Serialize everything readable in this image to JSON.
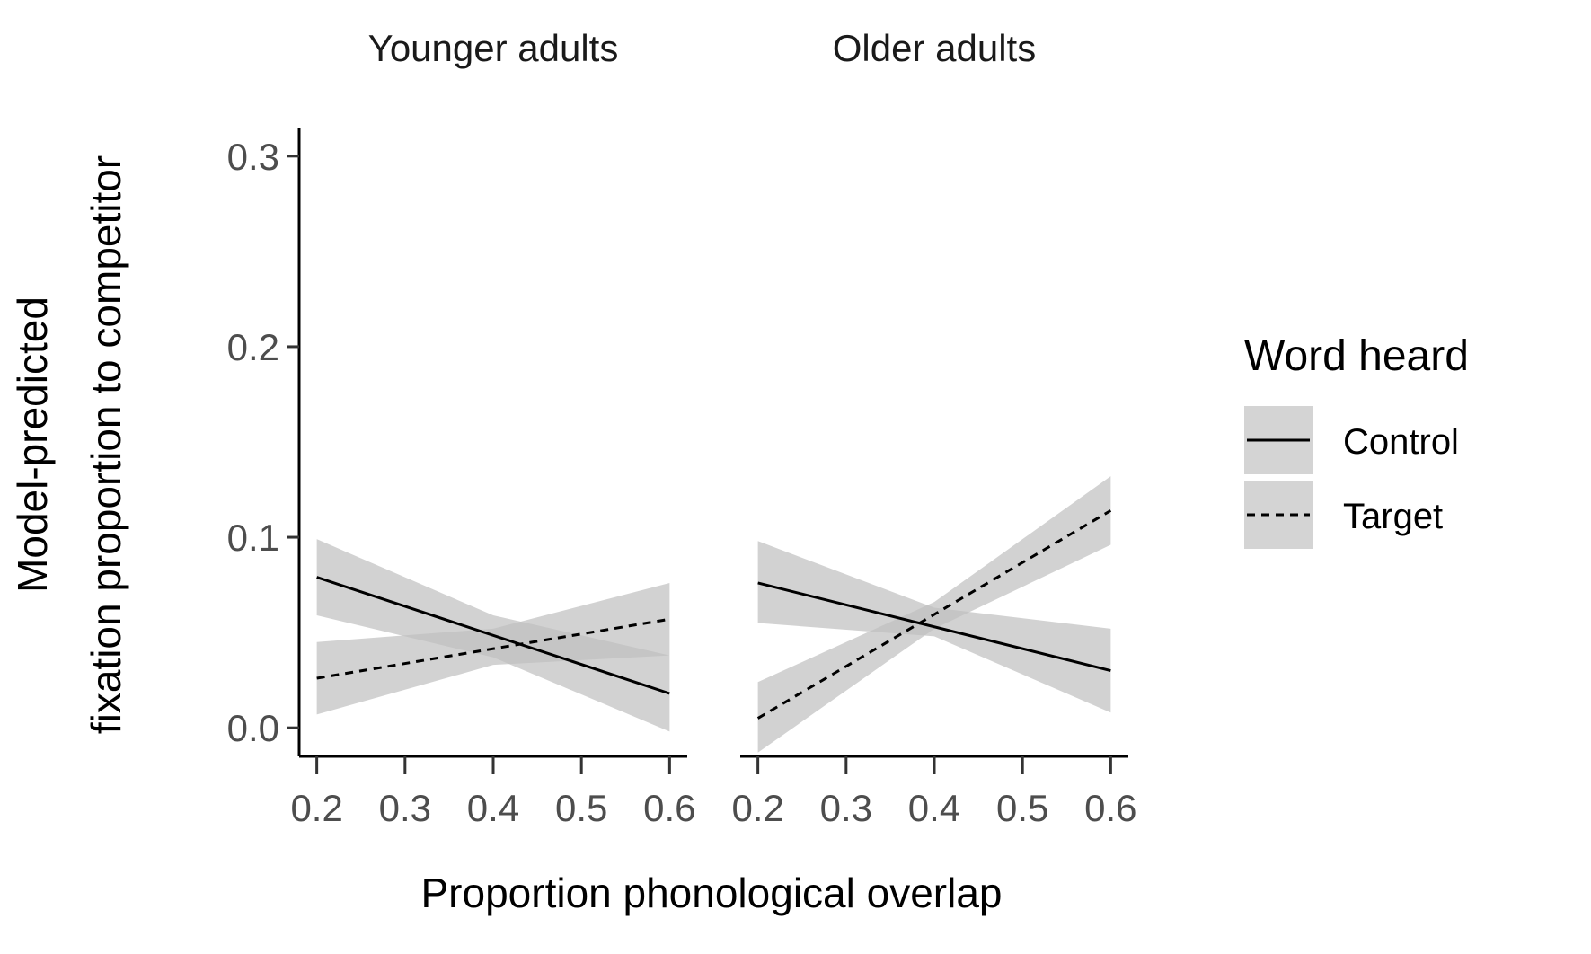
{
  "chart_data": {
    "type": "line",
    "xlabel": "Proportion phonological overlap",
    "ylabel_lines": [
      "Model-predicted",
      "fixation proportion to competitor"
    ],
    "xlim": [
      0.18,
      0.62
    ],
    "ylim": [
      -0.015,
      0.315
    ],
    "x_ticks": [
      "0.2",
      "0.3",
      "0.4",
      "0.5",
      "0.6"
    ],
    "y_ticks": [
      "0.0",
      "0.1",
      "0.2",
      "0.3"
    ],
    "ribbon_color": "#bfbfbf",
    "line_color": "#000000",
    "legend": {
      "title": "Word heard",
      "entries": [
        {
          "label": "Control",
          "linetype": "solid"
        },
        {
          "label": "Target",
          "linetype": "dashed"
        }
      ]
    },
    "panels": [
      {
        "title": "Younger adults",
        "series": [
          {
            "name": "Control",
            "linetype": "solid",
            "x": [
              0.2,
              0.6
            ],
            "y": [
              0.079,
              0.018
            ],
            "ribbon_lower": [
              0.059,
              0.037,
              -0.002
            ],
            "ribbon_upper": [
              0.099,
              0.059,
              0.038
            ],
            "ribbon_x": [
              0.2,
              0.4,
              0.6
            ]
          },
          {
            "name": "Target",
            "linetype": "dashed",
            "x": [
              0.2,
              0.6
            ],
            "y": [
              0.026,
              0.057
            ],
            "ribbon_lower": [
              0.007,
              0.033,
              0.038
            ],
            "ribbon_upper": [
              0.045,
              0.052,
              0.076
            ],
            "ribbon_x": [
              0.2,
              0.4,
              0.6
            ]
          }
        ]
      },
      {
        "title": "Older adults",
        "series": [
          {
            "name": "Control",
            "linetype": "solid",
            "x": [
              0.2,
              0.6
            ],
            "y": [
              0.076,
              0.03
            ],
            "ribbon_lower": [
              0.055,
              0.048,
              0.008
            ],
            "ribbon_upper": [
              0.098,
              0.063,
              0.052
            ],
            "ribbon_x": [
              0.2,
              0.4,
              0.6
            ]
          },
          {
            "name": "Target",
            "linetype": "dashed",
            "x": [
              0.2,
              0.6
            ],
            "y": [
              0.005,
              0.114
            ],
            "ribbon_lower": [
              -0.013,
              0.052,
              0.096
            ],
            "ribbon_upper": [
              0.024,
              0.066,
              0.132
            ],
            "ribbon_x": [
              0.2,
              0.4,
              0.6
            ]
          }
        ]
      }
    ]
  }
}
